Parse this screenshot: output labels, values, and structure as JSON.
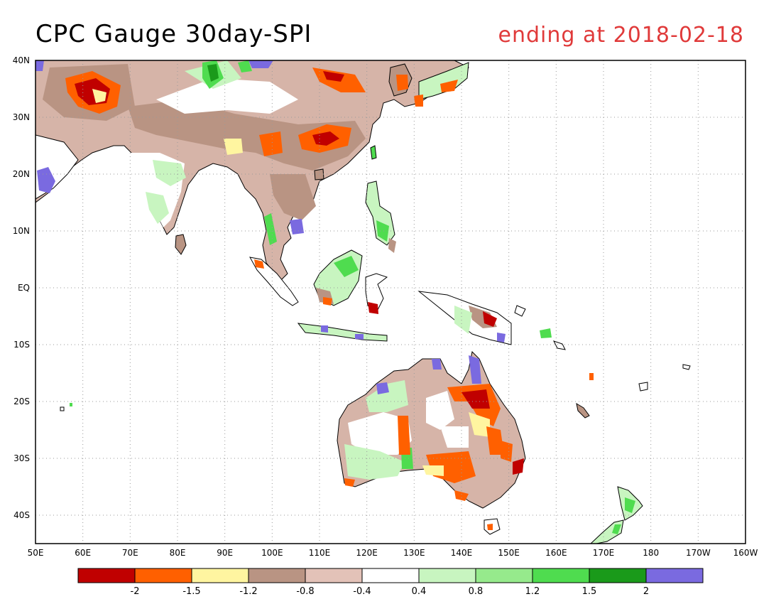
{
  "header": {
    "title": "CPC Gauge 30day-SPI",
    "subtitle": "ending at 2018-02-18"
  },
  "map": {
    "lon_range": [
      50,
      200
    ],
    "lat_range": [
      -45,
      40
    ],
    "lat_labels": [
      "40N",
      "30N",
      "20N",
      "10N",
      "EQ",
      "10S",
      "20S",
      "30S",
      "40S"
    ],
    "lat_values": [
      40,
      30,
      20,
      10,
      0,
      -10,
      -20,
      -30,
      -40
    ],
    "lon_labels": [
      "50E",
      "60E",
      "70E",
      "80E",
      "90E",
      "100E",
      "110E",
      "120E",
      "130E",
      "140E",
      "150E",
      "160E",
      "170E",
      "180",
      "170W",
      "160W"
    ],
    "lon_values": [
      50,
      60,
      70,
      80,
      90,
      100,
      110,
      120,
      130,
      140,
      150,
      160,
      170,
      180,
      190,
      200
    ],
    "grid": true
  },
  "legend": {
    "colors": [
      "#c00000",
      "#ff6000",
      "#fff5a0",
      "#b99483",
      "#e3c2b8",
      "#ffffff",
      "#c8f5c0",
      "#96ea8c",
      "#4fdc4f",
      "#1a9a1a",
      "#7a6ae0"
    ],
    "labels": [
      "-2",
      "-1.5",
      "-1.2",
      "-0.8",
      "-0.4",
      "0.4",
      "0.8",
      "1.2",
      "1.5",
      "2"
    ]
  }
}
